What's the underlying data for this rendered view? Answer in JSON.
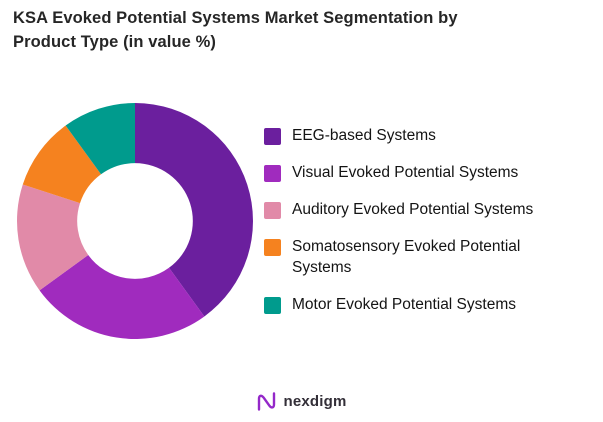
{
  "title": "KSA Evoked Potential Systems Market Segmentation by Product Type (in value %)",
  "chart_data": {
    "type": "pie",
    "subtype": "donut",
    "title": "KSA Evoked Potential Systems Market Segmentation by Product Type (in value %)",
    "categories": [
      "EEG-based Systems",
      "Visual Evoked Potential Systems",
      "Auditory Evoked Potential Systems",
      "Somatosensory Evoked Potential Systems",
      "Motor Evoked Potential Systems"
    ],
    "values": [
      40,
      25,
      15,
      10,
      10
    ],
    "unit": "value %",
    "colors": [
      "#6B1F9E",
      "#A02BBE",
      "#E18AA8",
      "#F5821F",
      "#009B8D"
    ],
    "start_angle_deg": 0,
    "direction": "clockwise",
    "inner_radius_ratio": 0.49,
    "legend_position": "right",
    "grid": false
  },
  "footer": {
    "brand": "nexdigm",
    "brand_icon": "nexdigm-wave-n-icon",
    "brand_color": "#9428c9"
  }
}
